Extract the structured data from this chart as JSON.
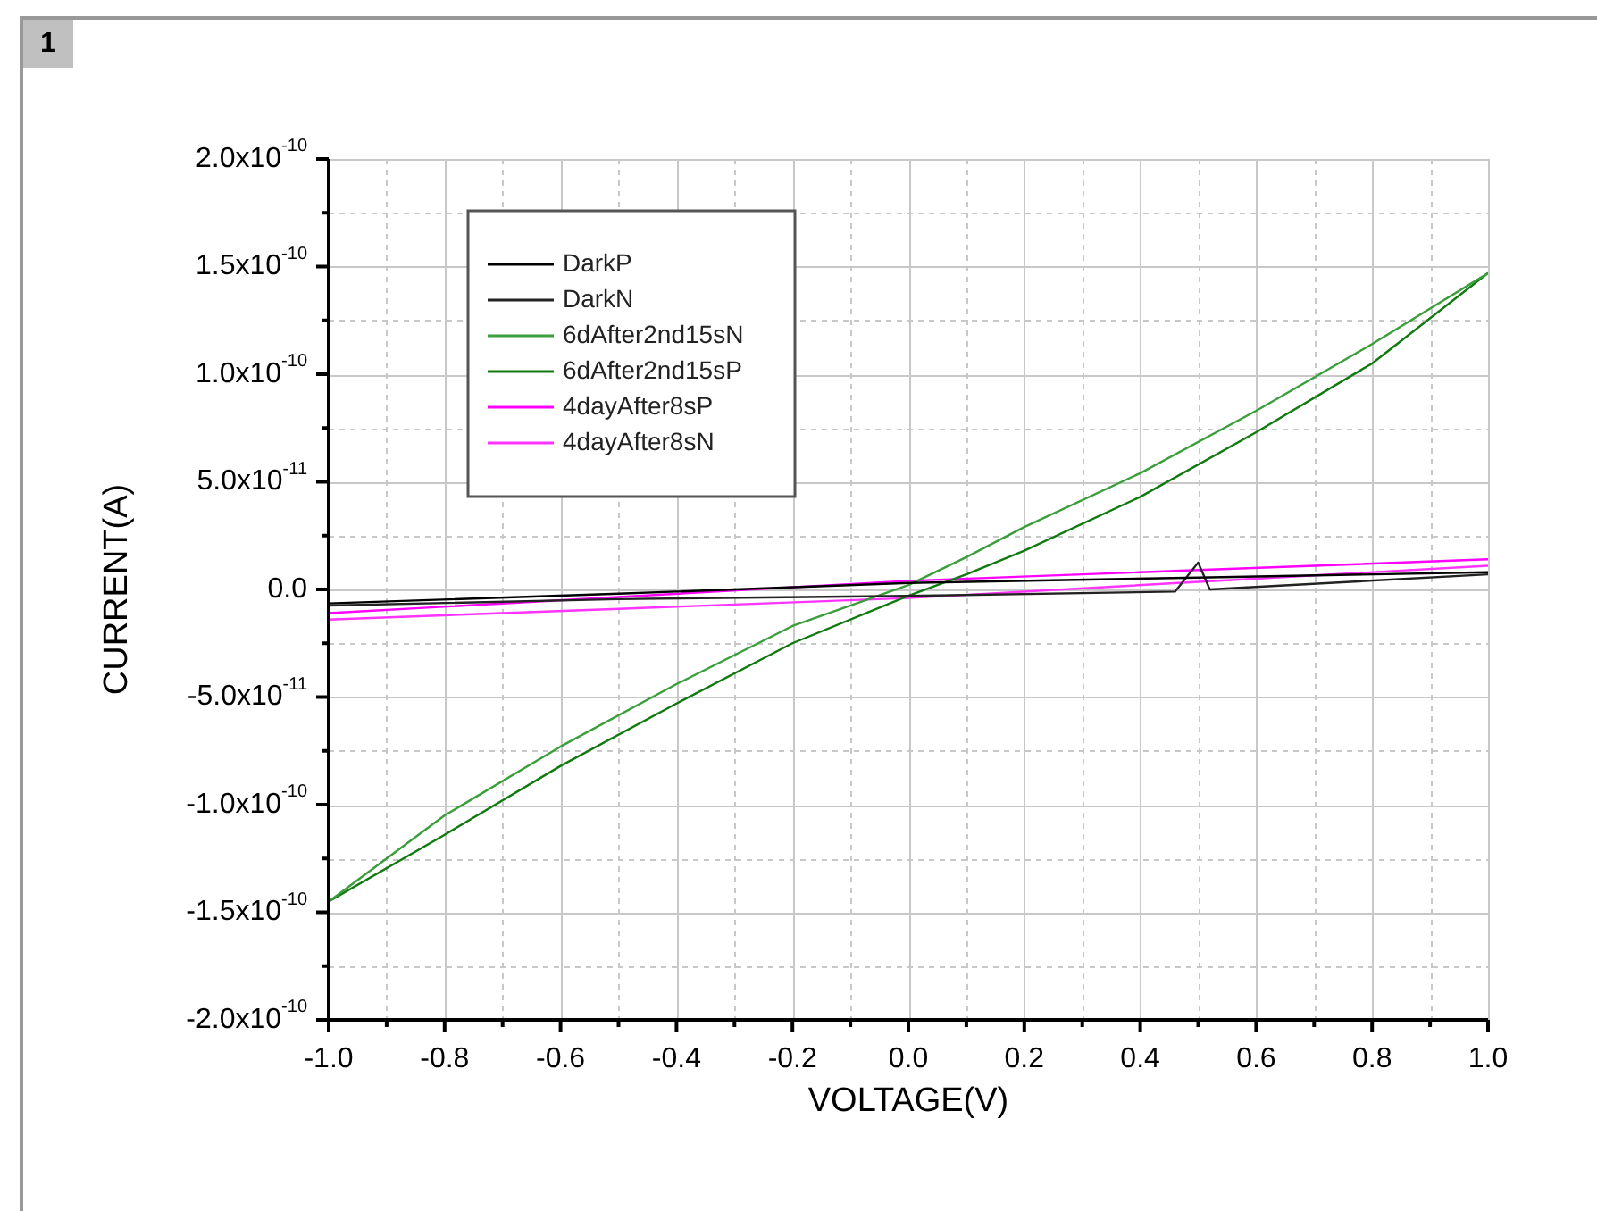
{
  "chart_data": {
    "type": "line",
    "xlabel": "VOLTAGE(V)",
    "ylabel": "CURRENT(A)",
    "annotations": [
      "1"
    ],
    "xlim": [
      -1,
      1
    ],
    "ylim": [
      -2e-10,
      2e-10
    ],
    "xticks": [
      {
        "value": -1,
        "label": "-1.0"
      },
      {
        "value": -0.9,
        "label": null
      },
      {
        "value": -0.8,
        "label": "-0.8"
      },
      {
        "value": -0.7,
        "label": null
      },
      {
        "value": -0.6,
        "label": "-0.6"
      },
      {
        "value": -0.5,
        "label": null
      },
      {
        "value": -0.4,
        "label": "-0.4"
      },
      {
        "value": -0.3,
        "label": null
      },
      {
        "value": -0.2,
        "label": "-0.2"
      },
      {
        "value": -0.1,
        "label": null
      },
      {
        "value": 0,
        "label": "0.0"
      },
      {
        "value": 0.1,
        "label": null
      },
      {
        "value": 0.2,
        "label": "0.2"
      },
      {
        "value": 0.3,
        "label": null
      },
      {
        "value": 0.4,
        "label": "0.4"
      },
      {
        "value": 0.5,
        "label": null
      },
      {
        "value": 0.6,
        "label": "0.6"
      },
      {
        "value": 0.7,
        "label": null
      },
      {
        "value": 0.8,
        "label": "0.8"
      },
      {
        "value": 0.9,
        "label": null
      },
      {
        "value": 1,
        "label": "1.0"
      }
    ],
    "yticks": [
      {
        "value": -2e-10,
        "label": "-2.0x10$^{-10}$"
      },
      {
        "value": -1.75e-10,
        "label": null
      },
      {
        "value": -1.5e-10,
        "label": "-1.5x10$^{-10}$"
      },
      {
        "value": -1.25e-10,
        "label": null
      },
      {
        "value": -1e-10,
        "label": "-1.0x10$^{-10}$"
      },
      {
        "value": -7.5e-11,
        "label": null
      },
      {
        "value": -5e-11,
        "label": "-5.0x10$^{-11}$"
      },
      {
        "value": -2.5e-11,
        "label": null
      },
      {
        "value": 0,
        "label": "0.0"
      },
      {
        "value": 2.5e-11,
        "label": null
      },
      {
        "value": 5e-11,
        "label": "5.0x10$^{-11}$"
      },
      {
        "value": 7.5e-11,
        "label": null
      },
      {
        "value": 1e-10,
        "label": "1.0x10$^{-10}$"
      },
      {
        "value": 1.25e-10,
        "label": null
      },
      {
        "value": 1.5e-10,
        "label": "1.5x10$^{-10}$"
      },
      {
        "value": 1.75e-10,
        "label": null
      },
      {
        "value": 2e-10,
        "label": "2.0x10$^{-10}$"
      }
    ],
    "grid": true,
    "legend": "top left",
    "marker": "none",
    "line_style": "solid",
    "series": [
      {
        "name": "DarkP",
        "color": "#000000",
        "x": [
          -1,
          -0.5,
          0,
          0.5,
          1
        ],
        "values": [
          -6.5e-12,
          -2e-12,
          3e-12,
          5.5e-12,
          8e-12
        ]
      },
      {
        "name": "DarkN",
        "color": "#222222",
        "x": [
          -1,
          -0.5,
          0,
          0.46,
          0.5,
          0.52,
          1
        ],
        "values": [
          -7.5e-12,
          -4.5e-12,
          -3e-12,
          -1e-12,
          1.25e-11,
          0,
          7e-12
        ]
      },
      {
        "name": "6dAfter2nd15sN",
        "color": "#3a9e3a",
        "x": [
          -1,
          -0.8,
          -0.6,
          -0.4,
          -0.2,
          0,
          0.1,
          0.2,
          0.4,
          0.6,
          0.8,
          1
        ],
        "values": [
          -1.45e-10,
          -1.05e-10,
          -7.3e-11,
          -4.4e-11,
          -1.7e-11,
          2e-12,
          1.5e-11,
          2.9e-11,
          5.4e-11,
          8.3e-11,
          1.14e-10,
          1.47e-10
        ]
      },
      {
        "name": "6dAfter2nd15sP",
        "color": "#107a10",
        "x": [
          -1,
          -0.8,
          -0.6,
          -0.4,
          -0.2,
          0,
          0.1,
          0.2,
          0.4,
          0.6,
          0.8,
          1
        ],
        "values": [
          -1.45e-10,
          -1.14e-10,
          -8.2e-11,
          -5.3e-11,
          -2.5e-11,
          -3e-12,
          7e-12,
          1.8e-11,
          4.3e-11,
          7.3e-11,
          1.05e-10,
          1.47e-10
        ]
      },
      {
        "name": "4dayAfter8sP",
        "color": "#ff00ff",
        "x": [
          -1,
          -0.5,
          0,
          0.5,
          1
        ],
        "values": [
          -1.1e-11,
          -3.5e-12,
          4e-12,
          9e-12,
          1.4e-11
        ]
      },
      {
        "name": "4dayAfter8sN",
        "color": "#ff33ff",
        "x": [
          -1,
          -0.5,
          0,
          0.5,
          1
        ],
        "values": [
          -1.4e-11,
          -9e-12,
          -4e-12,
          3.5e-12,
          1.1e-11
        ]
      }
    ]
  }
}
